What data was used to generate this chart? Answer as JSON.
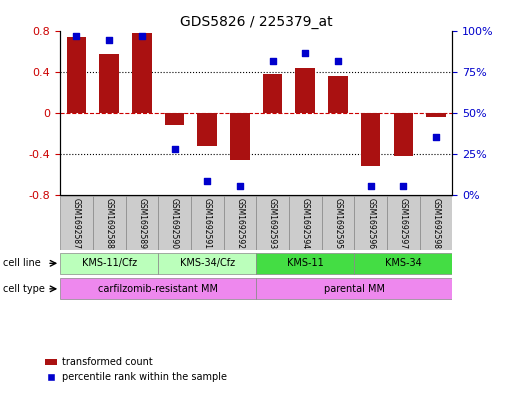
{
  "title": "GDS5826 / 225379_at",
  "samples": [
    "GSM1692587",
    "GSM1692588",
    "GSM1692589",
    "GSM1692590",
    "GSM1692591",
    "GSM1692592",
    "GSM1692593",
    "GSM1692594",
    "GSM1692595",
    "GSM1692596",
    "GSM1692597",
    "GSM1692598"
  ],
  "bar_values": [
    0.75,
    0.58,
    0.78,
    -0.12,
    -0.32,
    -0.46,
    0.38,
    0.44,
    0.36,
    -0.52,
    -0.42,
    -0.04
  ],
  "dot_values": [
    97,
    95,
    97,
    28,
    8,
    5,
    82,
    87,
    82,
    5,
    5,
    35
  ],
  "bar_color": "#aa1111",
  "dot_color": "#0000cc",
  "ylim_left": [
    -0.8,
    0.8
  ],
  "yticks_left": [
    -0.8,
    -0.4,
    0.0,
    0.4,
    0.8
  ],
  "ytick_labels_left": [
    "-0.8",
    "-0.4",
    "0",
    "0.4",
    "0.8"
  ],
  "ylim_right": [
    0,
    100
  ],
  "yticks_right": [
    0,
    25,
    50,
    75,
    100
  ],
  "ytick_labels_right": [
    "0%",
    "25%",
    "50%",
    "75%",
    "100%"
  ],
  "cell_line_groups": [
    {
      "label": "KMS-11/Cfz",
      "start": 0,
      "end": 3,
      "color": "#bbffbb"
    },
    {
      "label": "KMS-34/Cfz",
      "start": 3,
      "end": 6,
      "color": "#bbffbb"
    },
    {
      "label": "KMS-11",
      "start": 6,
      "end": 9,
      "color": "#44dd44"
    },
    {
      "label": "KMS-34",
      "start": 9,
      "end": 12,
      "color": "#44dd44"
    }
  ],
  "cell_type_groups": [
    {
      "label": "carfilzomib-resistant MM",
      "start": 0,
      "end": 6,
      "color": "#ee88ee"
    },
    {
      "label": "parental MM",
      "start": 6,
      "end": 12,
      "color": "#ee88ee"
    }
  ],
  "cell_line_label": "cell line",
  "cell_type_label": "cell type",
  "legend_bar": "transformed count",
  "legend_dot": "percentile rank within the sample",
  "bar_width": 0.6,
  "zero_line_color": "#cc0000",
  "bg_plot": "#ffffff",
  "bg_label": "#cccccc",
  "tick_color_left": "#cc0000",
  "tick_color_right": "#0000cc"
}
